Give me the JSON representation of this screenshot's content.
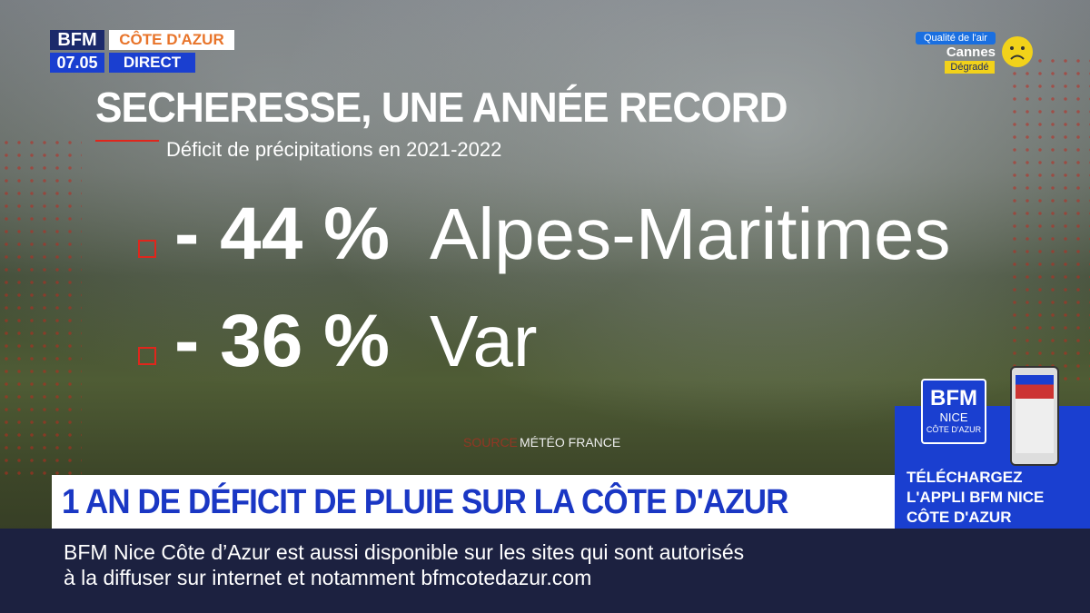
{
  "logo": {
    "channel": "BFM",
    "region": "CÔTE D'AZUR",
    "time": "07.05",
    "live": "DIRECT"
  },
  "air_quality": {
    "label": "Qualité de l'air",
    "city": "Cannes",
    "status": "Dégradé"
  },
  "graphic": {
    "title": "SECHERESSE, UNE ANNÉE RECORD",
    "subtitle": "Déficit de précipitations en 2021-2022",
    "items": [
      {
        "value": "- 44 %",
        "place": "Alpes-Maritimes"
      },
      {
        "value": "- 36 %",
        "place": "Var"
      }
    ],
    "source_label": "SOURCE",
    "source": "MÉTÉO FRANCE"
  },
  "banner": "1 AN DE DÉFICIT DE PLUIE SUR LA CÔTE D'AZUR",
  "promo": {
    "logo": [
      "BFM",
      "NICE",
      "CÔTE D'AZUR"
    ],
    "lines": [
      "TÉLÉCHARGEZ",
      "L'APPLI BFM NICE",
      "CÔTE D'AZUR"
    ]
  },
  "ticker": [
    "BFM Nice Côte d’Azur est aussi disponible sur les sites qui sont autorisés",
    "à la diffuser sur internet et notamment bfmcotedazur.com"
  ]
}
